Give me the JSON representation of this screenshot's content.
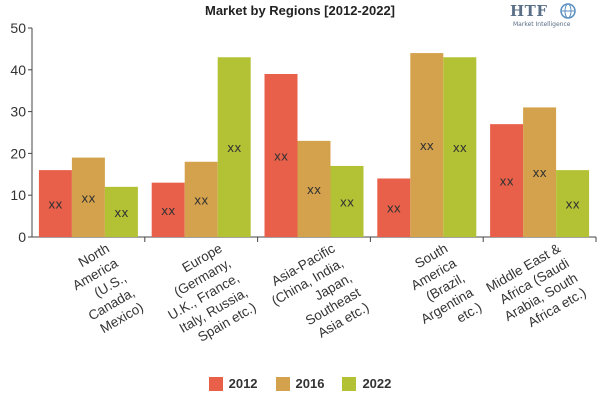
{
  "colors": {
    "2012": "#e8604a",
    "2016": "#d4a24c",
    "2022": "#b3c234"
  },
  "logo": {
    "mark": "HTF",
    "sub": "Market Intelligence"
  },
  "chart_data": {
    "type": "bar",
    "title": "Market by Regions [2012-2022]",
    "categories": [
      [
        "North",
        "America",
        "(U.S.,",
        "Canada,",
        "Mexico)"
      ],
      [
        "Europe",
        "(Germany,",
        "U.K., France,",
        "Italy, Russia,",
        "Spain etc.)"
      ],
      [
        "Asia-Pacific",
        "(China, India,",
        "Japan,",
        "Southeast",
        "Asia etc.)"
      ],
      [
        "South",
        "America",
        "(Brazil,",
        "Argentina",
        "etc.)"
      ],
      [
        "Middle East &",
        "Africa (Saudi",
        "Arabia, South",
        "Africa etc.)"
      ]
    ],
    "series": [
      {
        "name": "2012",
        "values": [
          16,
          13,
          39,
          14,
          27
        ]
      },
      {
        "name": "2016",
        "values": [
          19,
          18,
          23,
          44,
          31
        ]
      },
      {
        "name": "2022",
        "values": [
          12,
          43,
          17,
          43,
          16
        ]
      }
    ],
    "data_label": "xx",
    "ylim": [
      0,
      50
    ],
    "yticks": [
      0,
      10,
      20,
      30,
      40,
      50
    ],
    "grid": false,
    "legend_position": "bottom"
  }
}
